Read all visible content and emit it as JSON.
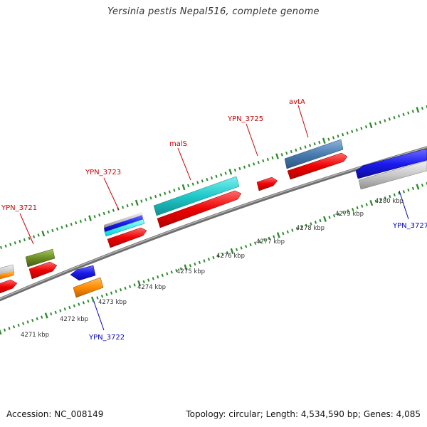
{
  "title": "Yersinia pestis Nepal516, complete genome",
  "footer": {
    "accession_label": "Accession:",
    "accession": "NC_008149",
    "topology_label": "Topology:",
    "topology": "circular",
    "length_label": "Length:",
    "length": "4,534,590 bp",
    "genes_label": "Genes:",
    "genes": "4,085"
  },
  "colors": {
    "backbone": "#8a8a8a",
    "tick": "#2e8b2e",
    "forward_label": "#cc0000",
    "reverse_label": "#0000bb",
    "scale_label": "#333333"
  },
  "scale_labels": [
    "4271 kbp",
    "4272 kbp",
    "4273 kbp",
    "4274 kbp",
    "4275 kbp",
    "4276 kbp",
    "4277 kbp",
    "4278 kbp",
    "4279 kbp",
    "4280 kbp"
  ],
  "gene_labels": [
    {
      "text": "YPN_3721",
      "strand": "forward"
    },
    {
      "text": "YPN_3723",
      "strand": "forward"
    },
    {
      "text": "malS",
      "strand": "forward"
    },
    {
      "text": "YPN_3725",
      "strand": "forward"
    },
    {
      "text": "avtA",
      "strand": "forward"
    },
    {
      "text": "YPN_3722",
      "strand": "reverse"
    },
    {
      "text": "YPN_3727",
      "strand": "reverse"
    }
  ],
  "features": [
    {
      "name": "cds-outer-grey-left",
      "color": "#c8c8c8"
    },
    {
      "name": "cds-olive",
      "color": "#6b8e23"
    },
    {
      "name": "cds-blue-3723",
      "color": "#1a1acc"
    },
    {
      "name": "cds-cyan-3723",
      "color": "#00e5ee"
    },
    {
      "name": "cds-teal-mals",
      "color": "#22c8c8"
    },
    {
      "name": "cds-steelblue-avta",
      "color": "#4a7db0"
    },
    {
      "name": "cds-red",
      "color": "#ee0000"
    },
    {
      "name": "cds-blue-3722",
      "color": "#1a1aee"
    },
    {
      "name": "cds-orange-3722",
      "color": "#ff8c00"
    },
    {
      "name": "cds-blue-3727",
      "color": "#1a1aee"
    },
    {
      "name": "cds-grey-3727",
      "color": "#c8c8c8"
    }
  ]
}
